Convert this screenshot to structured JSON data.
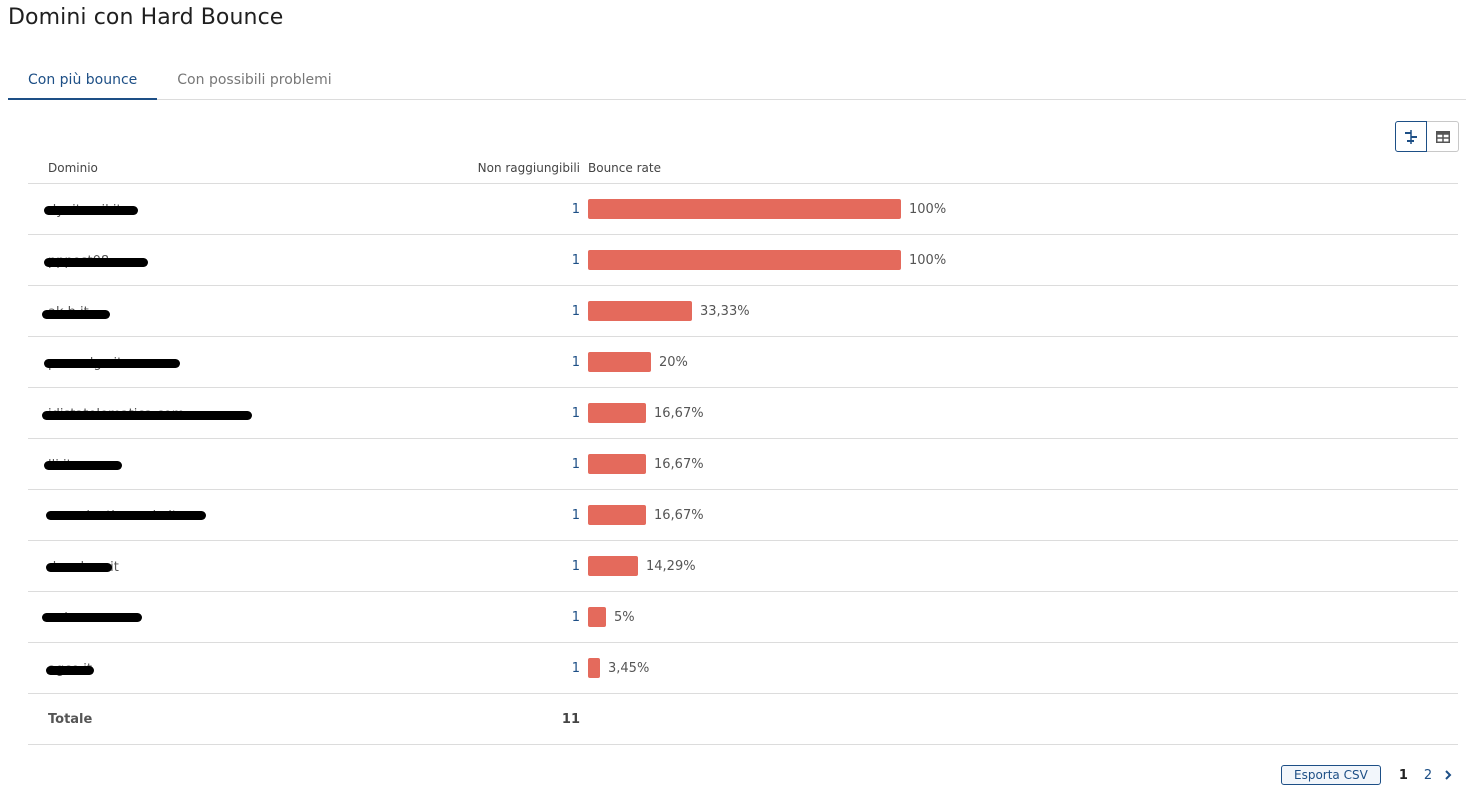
{
  "page": {
    "title": "Domini con Hard Bounce"
  },
  "tabs": [
    {
      "label": "Con più bounce",
      "active": true
    },
    {
      "label": "Con possibili problemi",
      "active": false
    }
  ],
  "view_toggle": {
    "active": "chart-view",
    "options": [
      "chart-view-icon",
      "table-view-icon"
    ]
  },
  "table": {
    "headers": {
      "domain": "Dominio",
      "unreachable": "Non raggiungibili",
      "rate": "Bounce rate"
    },
    "rows": [
      {
        "domain": "dynitmail.it",
        "unreachable": "1",
        "rate": 100,
        "rate_label": "100%"
      },
      {
        "domain": "pppost08",
        "unreachable": "1",
        "rate": 100,
        "rate_label": "100%"
      },
      {
        "domain": "ak.b.it",
        "unreachable": "1",
        "rate": 33.33,
        "rate_label": "33,33%"
      },
      {
        "domain": "p.......dgo.it",
        "unreachable": "1",
        "rate": 20,
        "rate_label": "20%"
      },
      {
        "domain": "idistatelematica.com",
        "unreachable": "1",
        "rate": 16.67,
        "rate_label": "16,67%"
      },
      {
        "domain": "lli.it",
        "unreachable": "1",
        "rate": 16.67,
        "rate_label": "16,67%"
      },
      {
        "domain": "consulenti.monda.it",
        "unreachable": "1",
        "rate": 16.67,
        "rate_label": "16,67%"
      },
      {
        "domain": "denelsca.it",
        "unreachable": "1",
        "rate": 14.29,
        "rate_label": "14,29%"
      },
      {
        "domain": "nel.com",
        "unreachable": "1",
        "rate": 5,
        "rate_label": "5%"
      },
      {
        "domain": "agco.it",
        "unreachable": "1",
        "rate": 3.45,
        "rate_label": "3,45%"
      }
    ],
    "total": {
      "label": "Totale",
      "value": "11"
    }
  },
  "footer": {
    "export_label": "Esporta CSV",
    "pages": [
      "1",
      "2"
    ],
    "current_page": "1"
  },
  "colors": {
    "accent": "#1d4f86",
    "bar": "#e46a5c"
  }
}
